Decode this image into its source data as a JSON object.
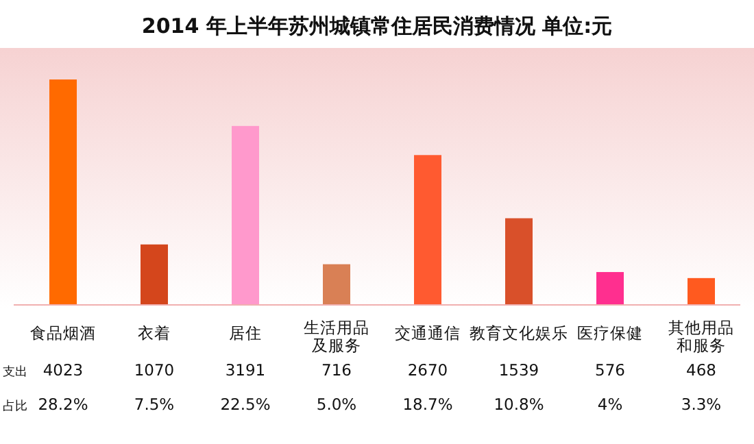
{
  "chart_data": {
    "type": "bar",
    "title": "2014 年上半年苏州城镇常住居民消费情况    单位:元",
    "categories": [
      "食品烟酒",
      "衣着",
      "居住",
      "生活用品及服务",
      "交通通信",
      "教育文化娱乐",
      "医疗保健",
      "其他用品和服务"
    ],
    "values": [
      4023,
      1070,
      3191,
      716,
      2670,
      1539,
      576,
      468
    ],
    "colors": [
      "#ff6a00",
      "#d4461c",
      "#ff99cc",
      "#d98055",
      "#ff5a30",
      "#d9502a",
      "#ff2f8f",
      "#ff5a1f"
    ],
    "data_labels": true,
    "annotations": [
      "支出",
      "占比",
      "28.2%",
      "7.5%",
      "22.5%",
      "5.0%",
      "18.7%",
      "10.8%",
      "4%",
      "3.3%"
    ]
  }
}
